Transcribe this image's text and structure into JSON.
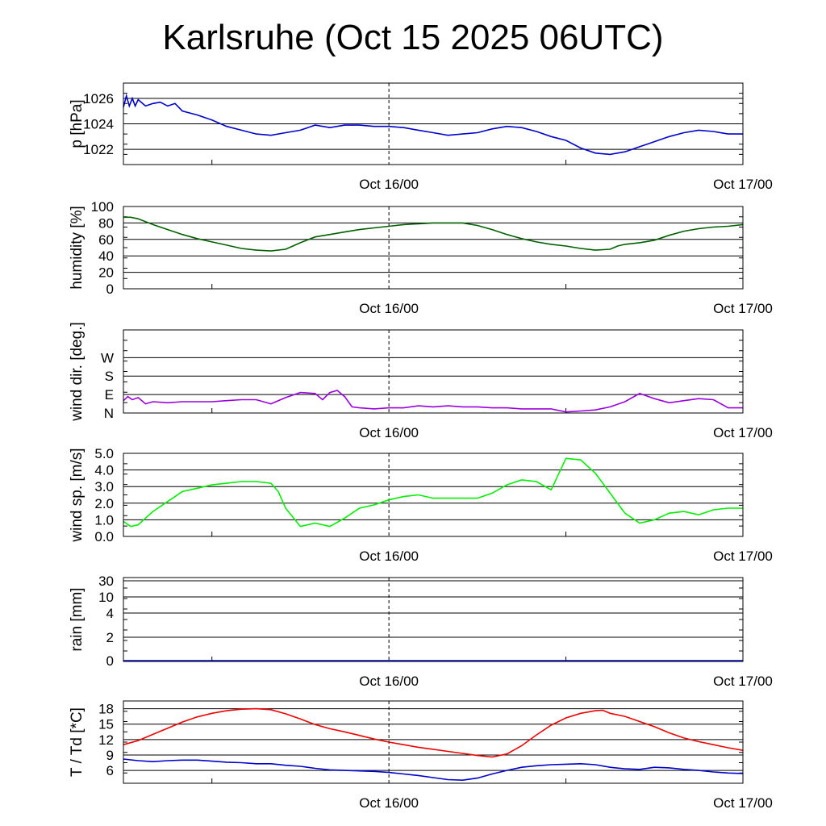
{
  "title": "Karlsruhe (Oct 15 2025 06UTC)",
  "chart_data": [
    {
      "type": "line",
      "id": "pressure",
      "ylabel": "p [hPa]",
      "xticks": [
        "Oct 16/00",
        "Oct 17/00"
      ],
      "xlim_hours": [
        0,
        42
      ],
      "ylim": [
        1020.8,
        1027.2
      ],
      "ytick_values": [
        1022,
        1024,
        1026
      ],
      "ytick_labels": [
        "1022",
        "1024",
        "1026"
      ],
      "series": [
        {
          "name": "p",
          "color": "#0000cc",
          "x": [
            0,
            0.2,
            0.4,
            0.6,
            0.8,
            1,
            1.5,
            2,
            2.5,
            3,
            3.5,
            4,
            5,
            6,
            7,
            8,
            9,
            10,
            11,
            12,
            13,
            14,
            15,
            16,
            17,
            18,
            19,
            20,
            21,
            22,
            23,
            24,
            25,
            26,
            27,
            28,
            29,
            30,
            31,
            32,
            33,
            34,
            35,
            36,
            37,
            38,
            39,
            40,
            41,
            42
          ],
          "y": [
            1025.3,
            1026.2,
            1025.4,
            1026.0,
            1025.4,
            1025.9,
            1025.4,
            1025.6,
            1025.7,
            1025.4,
            1025.6,
            1025.0,
            1024.7,
            1024.3,
            1023.8,
            1023.5,
            1023.2,
            1023.1,
            1023.3,
            1023.5,
            1023.9,
            1023.7,
            1023.9,
            1023.9,
            1023.8,
            1023.8,
            1023.7,
            1023.5,
            1023.3,
            1023.1,
            1023.2,
            1023.3,
            1023.6,
            1023.8,
            1023.7,
            1023.4,
            1023.0,
            1022.7,
            1022.1,
            1021.7,
            1021.6,
            1021.8,
            1022.2,
            1022.6,
            1023.0,
            1023.3,
            1023.5,
            1023.4,
            1023.2,
            1023.2
          ]
        }
      ]
    },
    {
      "type": "line",
      "id": "humidity",
      "ylabel": "humidity [%]",
      "xticks": [
        "Oct 16/00",
        "Oct 17/00"
      ],
      "xlim_hours": [
        0,
        42
      ],
      "ylim": [
        0,
        100
      ],
      "ytick_values": [
        0,
        20,
        40,
        60,
        80,
        100
      ],
      "ytick_labels": [
        "0",
        "20",
        "40",
        "60",
        "80",
        "100"
      ],
      "series": [
        {
          "name": "humidity",
          "color": "#006000",
          "x": [
            0,
            0.5,
            1,
            2,
            3,
            4,
            5,
            6,
            7,
            8,
            9,
            10,
            11,
            12,
            13,
            14,
            15,
            16,
            17,
            18,
            19,
            20,
            21,
            22,
            23,
            24,
            25,
            26,
            27,
            28,
            29,
            30,
            31,
            32,
            33,
            33.5,
            34,
            35,
            36,
            37,
            38,
            39,
            40,
            41,
            42
          ],
          "y": [
            87,
            87,
            85,
            78,
            72,
            66,
            61,
            57,
            53,
            49,
            47,
            46,
            48,
            56,
            63,
            66,
            69,
            72,
            74,
            76,
            78,
            79,
            80,
            80,
            80,
            77,
            72,
            66,
            61,
            57,
            54,
            52,
            49,
            47,
            48,
            52,
            54,
            56,
            59,
            65,
            70,
            73,
            75,
            76,
            78
          ]
        }
      ]
    },
    {
      "type": "line",
      "id": "wind_direction",
      "ylabel": "wind dir. [deg.]",
      "xticks": [
        "Oct 16/00",
        "Oct 17/00"
      ],
      "xlim_hours": [
        0,
        42
      ],
      "ylim": [
        0,
        405
      ],
      "ytick_values": [
        0,
        90,
        180,
        270
      ],
      "ytick_labels": [
        "N",
        "E",
        "S",
        "W"
      ],
      "series": [
        {
          "name": "wind dir",
          "color": "#9900dd",
          "x": [
            0,
            0.3,
            0.6,
            1,
            1.5,
            2,
            3,
            4,
            5,
            6,
            7,
            8,
            9,
            10,
            11,
            12,
            13,
            13.5,
            14,
            14.5,
            15,
            15.5,
            16,
            17,
            18,
            19,
            20,
            21,
            22,
            23,
            24,
            25,
            26,
            27,
            28,
            29,
            30,
            31,
            32,
            33,
            34,
            35,
            36,
            37,
            38,
            39,
            40,
            41,
            42
          ],
          "y": [
            60,
            80,
            65,
            75,
            45,
            55,
            50,
            55,
            55,
            55,
            60,
            65,
            65,
            45,
            75,
            100,
            95,
            65,
            100,
            110,
            80,
            30,
            25,
            20,
            25,
            25,
            35,
            30,
            35,
            30,
            30,
            25,
            25,
            20,
            20,
            20,
            5,
            10,
            15,
            30,
            55,
            95,
            70,
            50,
            60,
            70,
            65,
            25,
            25
          ]
        }
      ]
    },
    {
      "type": "line",
      "id": "wind_speed",
      "ylabel": "wind sp. [m/s]",
      "xticks": [
        "Oct 16/00",
        "Oct 17/00"
      ],
      "xlim_hours": [
        0,
        42
      ],
      "ylim": [
        0,
        5
      ],
      "ytick_values": [
        0,
        1,
        2,
        3,
        4,
        5
      ],
      "ytick_labels": [
        "0.0",
        "1.0",
        "2.0",
        "3.0",
        "4.0",
        "5.0"
      ],
      "series": [
        {
          "name": "wind speed",
          "color": "#00ee00",
          "x": [
            0,
            0.5,
            1,
            1.5,
            2,
            3,
            4,
            5,
            6,
            7,
            8,
            9,
            10,
            10.5,
            11,
            12,
            13,
            14,
            15,
            16,
            17,
            18,
            19,
            20,
            21,
            22,
            23,
            24,
            25,
            26,
            27,
            28,
            29,
            30,
            31,
            32,
            33,
            34,
            35,
            36,
            37,
            38,
            39,
            40,
            41,
            42
          ],
          "y": [
            0.9,
            0.6,
            0.7,
            1.1,
            1.5,
            2.1,
            2.7,
            2.9,
            3.1,
            3.2,
            3.3,
            3.3,
            3.2,
            2.7,
            1.7,
            0.6,
            0.8,
            0.6,
            1.1,
            1.7,
            1.9,
            2.2,
            2.4,
            2.5,
            2.3,
            2.3,
            2.3,
            2.3,
            2.6,
            3.1,
            3.4,
            3.3,
            2.8,
            4.7,
            4.6,
            3.8,
            2.6,
            1.4,
            0.8,
            1.0,
            1.4,
            1.5,
            1.3,
            1.6,
            1.7,
            1.7
          ]
        }
      ]
    },
    {
      "type": "line",
      "id": "rain",
      "ylabel": "rain [mm]",
      "xticks": [
        "Oct 16/00",
        "Oct 17/00"
      ],
      "xlim_hours": [
        0,
        42
      ],
      "ylim": [
        0,
        30
      ],
      "ytick_values": [
        0,
        2,
        4,
        10,
        30
      ],
      "ytick_labels": [
        "0",
        "2",
        "4",
        "10",
        "30"
      ],
      "series": [
        {
          "name": "rain",
          "color": "#0000cc",
          "x": [
            0,
            42
          ],
          "y": [
            0,
            0
          ]
        }
      ]
    },
    {
      "type": "line",
      "id": "temperature",
      "ylabel": "T / Td [*C]",
      "xticks": [
        "Oct 16/00",
        "Oct 17/00"
      ],
      "xlim_hours": [
        0,
        42
      ],
      "ylim": [
        3.5,
        19.5
      ],
      "ytick_values": [
        6,
        9,
        12,
        15,
        18
      ],
      "ytick_labels": [
        "6",
        "9",
        "12",
        "15",
        "18"
      ],
      "series": [
        {
          "name": "T",
          "color": "#ee0000",
          "x": [
            0,
            1,
            2,
            3,
            4,
            5,
            6,
            7,
            8,
            9,
            10,
            11,
            12,
            13,
            14,
            15,
            16,
            17,
            18,
            19,
            20,
            21,
            22,
            23,
            24,
            25,
            26,
            27,
            28,
            29,
            30,
            31,
            32,
            32.5,
            33,
            34,
            35,
            36,
            37,
            38,
            39,
            40,
            41,
            42
          ],
          "y": [
            11,
            11.8,
            13,
            14.2,
            15.4,
            16.4,
            17.1,
            17.6,
            17.9,
            18,
            17.8,
            17,
            16,
            14.9,
            14.1,
            13.5,
            12.8,
            12.1,
            11.5,
            11,
            10.5,
            10.1,
            9.7,
            9.3,
            8.9,
            8.6,
            9.2,
            10.8,
            12.9,
            14.8,
            16.2,
            17.1,
            17.6,
            17.7,
            17.1,
            16.5,
            15.5,
            14.5,
            13.3,
            12.3,
            11.6,
            11,
            10.4,
            9.9
          ]
        },
        {
          "name": "Td",
          "color": "#0000cc",
          "x": [
            0,
            1,
            2,
            3,
            4,
            5,
            6,
            7,
            8,
            9,
            10,
            11,
            12,
            13,
            14,
            15,
            16,
            17,
            18,
            19,
            20,
            21,
            22,
            23,
            24,
            25,
            26,
            27,
            28,
            29,
            30,
            31,
            32,
            33,
            34,
            35,
            36,
            37,
            38,
            39,
            40,
            41,
            42
          ],
          "y": [
            8.2,
            7.9,
            7.7,
            7.9,
            8,
            8,
            7.8,
            7.6,
            7.5,
            7.3,
            7.3,
            7,
            6.8,
            6.4,
            6.1,
            6,
            5.9,
            5.8,
            5.6,
            5.3,
            5,
            4.6,
            4.2,
            4.1,
            4.5,
            5.3,
            6,
            6.6,
            6.9,
            7.1,
            7.2,
            7.3,
            7.1,
            6.6,
            6.3,
            6.2,
            6.6,
            6.5,
            6.2,
            6,
            5.7,
            5.5,
            5.4
          ]
        }
      ]
    }
  ]
}
